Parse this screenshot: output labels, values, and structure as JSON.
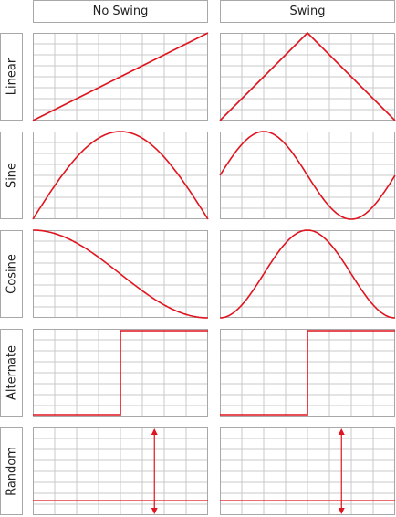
{
  "columns": [
    "No Swing",
    "Swing"
  ],
  "rows": [
    "Linear",
    "Sine",
    "Cosine",
    "Alternate",
    "Random"
  ],
  "colors": {
    "curve": "#e0141e",
    "grid": "#c8c8c8",
    "border": "#a8a8a8"
  }
}
